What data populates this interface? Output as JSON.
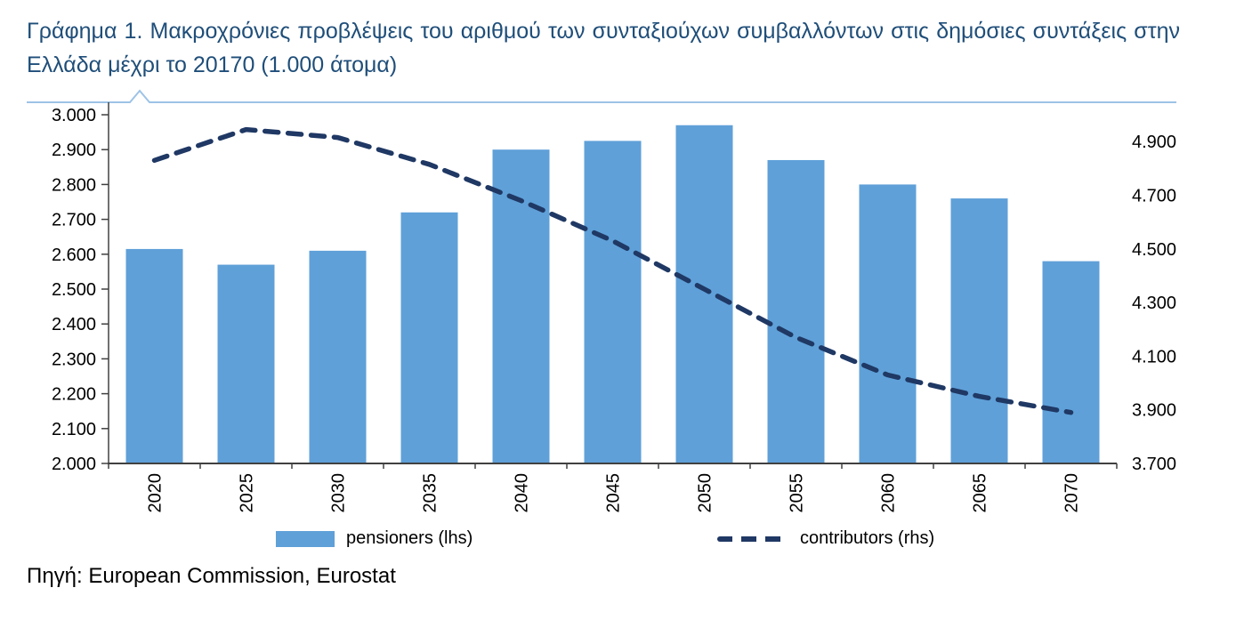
{
  "title": "Γράφημα 1. Μακροχρόνιες προβλέψεις του αριθμού των συνταξιούχων συμβαλλόντων στις δημόσιες συντάξεις στην Ελλάδα μέχρι το 20170 (1.000 άτομα)",
  "source": "Πηγή: European Commission, Eurostat",
  "colors": {
    "bar": "#5FA0D8",
    "line": "#1F3864",
    "title": "#1F4E79",
    "separator": "#9DC3E6",
    "axis": "#404040",
    "text": "#000000"
  },
  "chart_data": {
    "type": "bar",
    "subtype": "bar-plus-dashed-line-dual-axis",
    "title": "Γράφημα 1. Μακροχρόνιες προβλέψεις του αριθμού των συνταξιούχων συμβαλλόντων στις δημόσιες συντάξεις στην Ελλάδα μέχρι το 20170 (1.000 άτομα)",
    "categories": [
      "2020",
      "2025",
      "2030",
      "2035",
      "2040",
      "2045",
      "2050",
      "2055",
      "2060",
      "2065",
      "2070"
    ],
    "series": [
      {
        "name": "pensioners (lhs)",
        "type": "bar",
        "axis": "left",
        "values": [
          2615,
          2570,
          2610,
          2720,
          2900,
          2925,
          2970,
          2870,
          2800,
          2760,
          2580
        ]
      },
      {
        "name": "contributors (rhs)",
        "type": "dashed-line",
        "axis": "right",
        "values": [
          4830,
          4945,
          4915,
          4815,
          4680,
          4530,
          4350,
          4170,
          4030,
          3950,
          3890
        ]
      }
    ],
    "left_axis": {
      "min": 2000,
      "max": 3000,
      "tick_values": [
        2000,
        2100,
        2200,
        2300,
        2400,
        2500,
        2600,
        2700,
        2800,
        2900,
        3000
      ],
      "tick_labels": [
        "2.000",
        "2.100",
        "2.200",
        "2.300",
        "2.400",
        "2.500",
        "2.600",
        "2.700",
        "2.800",
        "2.900",
        "3.000"
      ]
    },
    "right_axis": {
      "min": 3700,
      "max": 5000,
      "tick_values": [
        3700,
        3900,
        4100,
        4300,
        4500,
        4700,
        4900
      ],
      "tick_labels": [
        "3.700",
        "3.900",
        "4.100",
        "4.300",
        "4.500",
        "4.700",
        "4.900"
      ]
    },
    "legend": [
      {
        "label": "pensioners (lhs)",
        "swatch": "bar"
      },
      {
        "label": "contributors (rhs)",
        "swatch": "dashed-line"
      }
    ],
    "grid": false,
    "legend_position": "bottom"
  }
}
